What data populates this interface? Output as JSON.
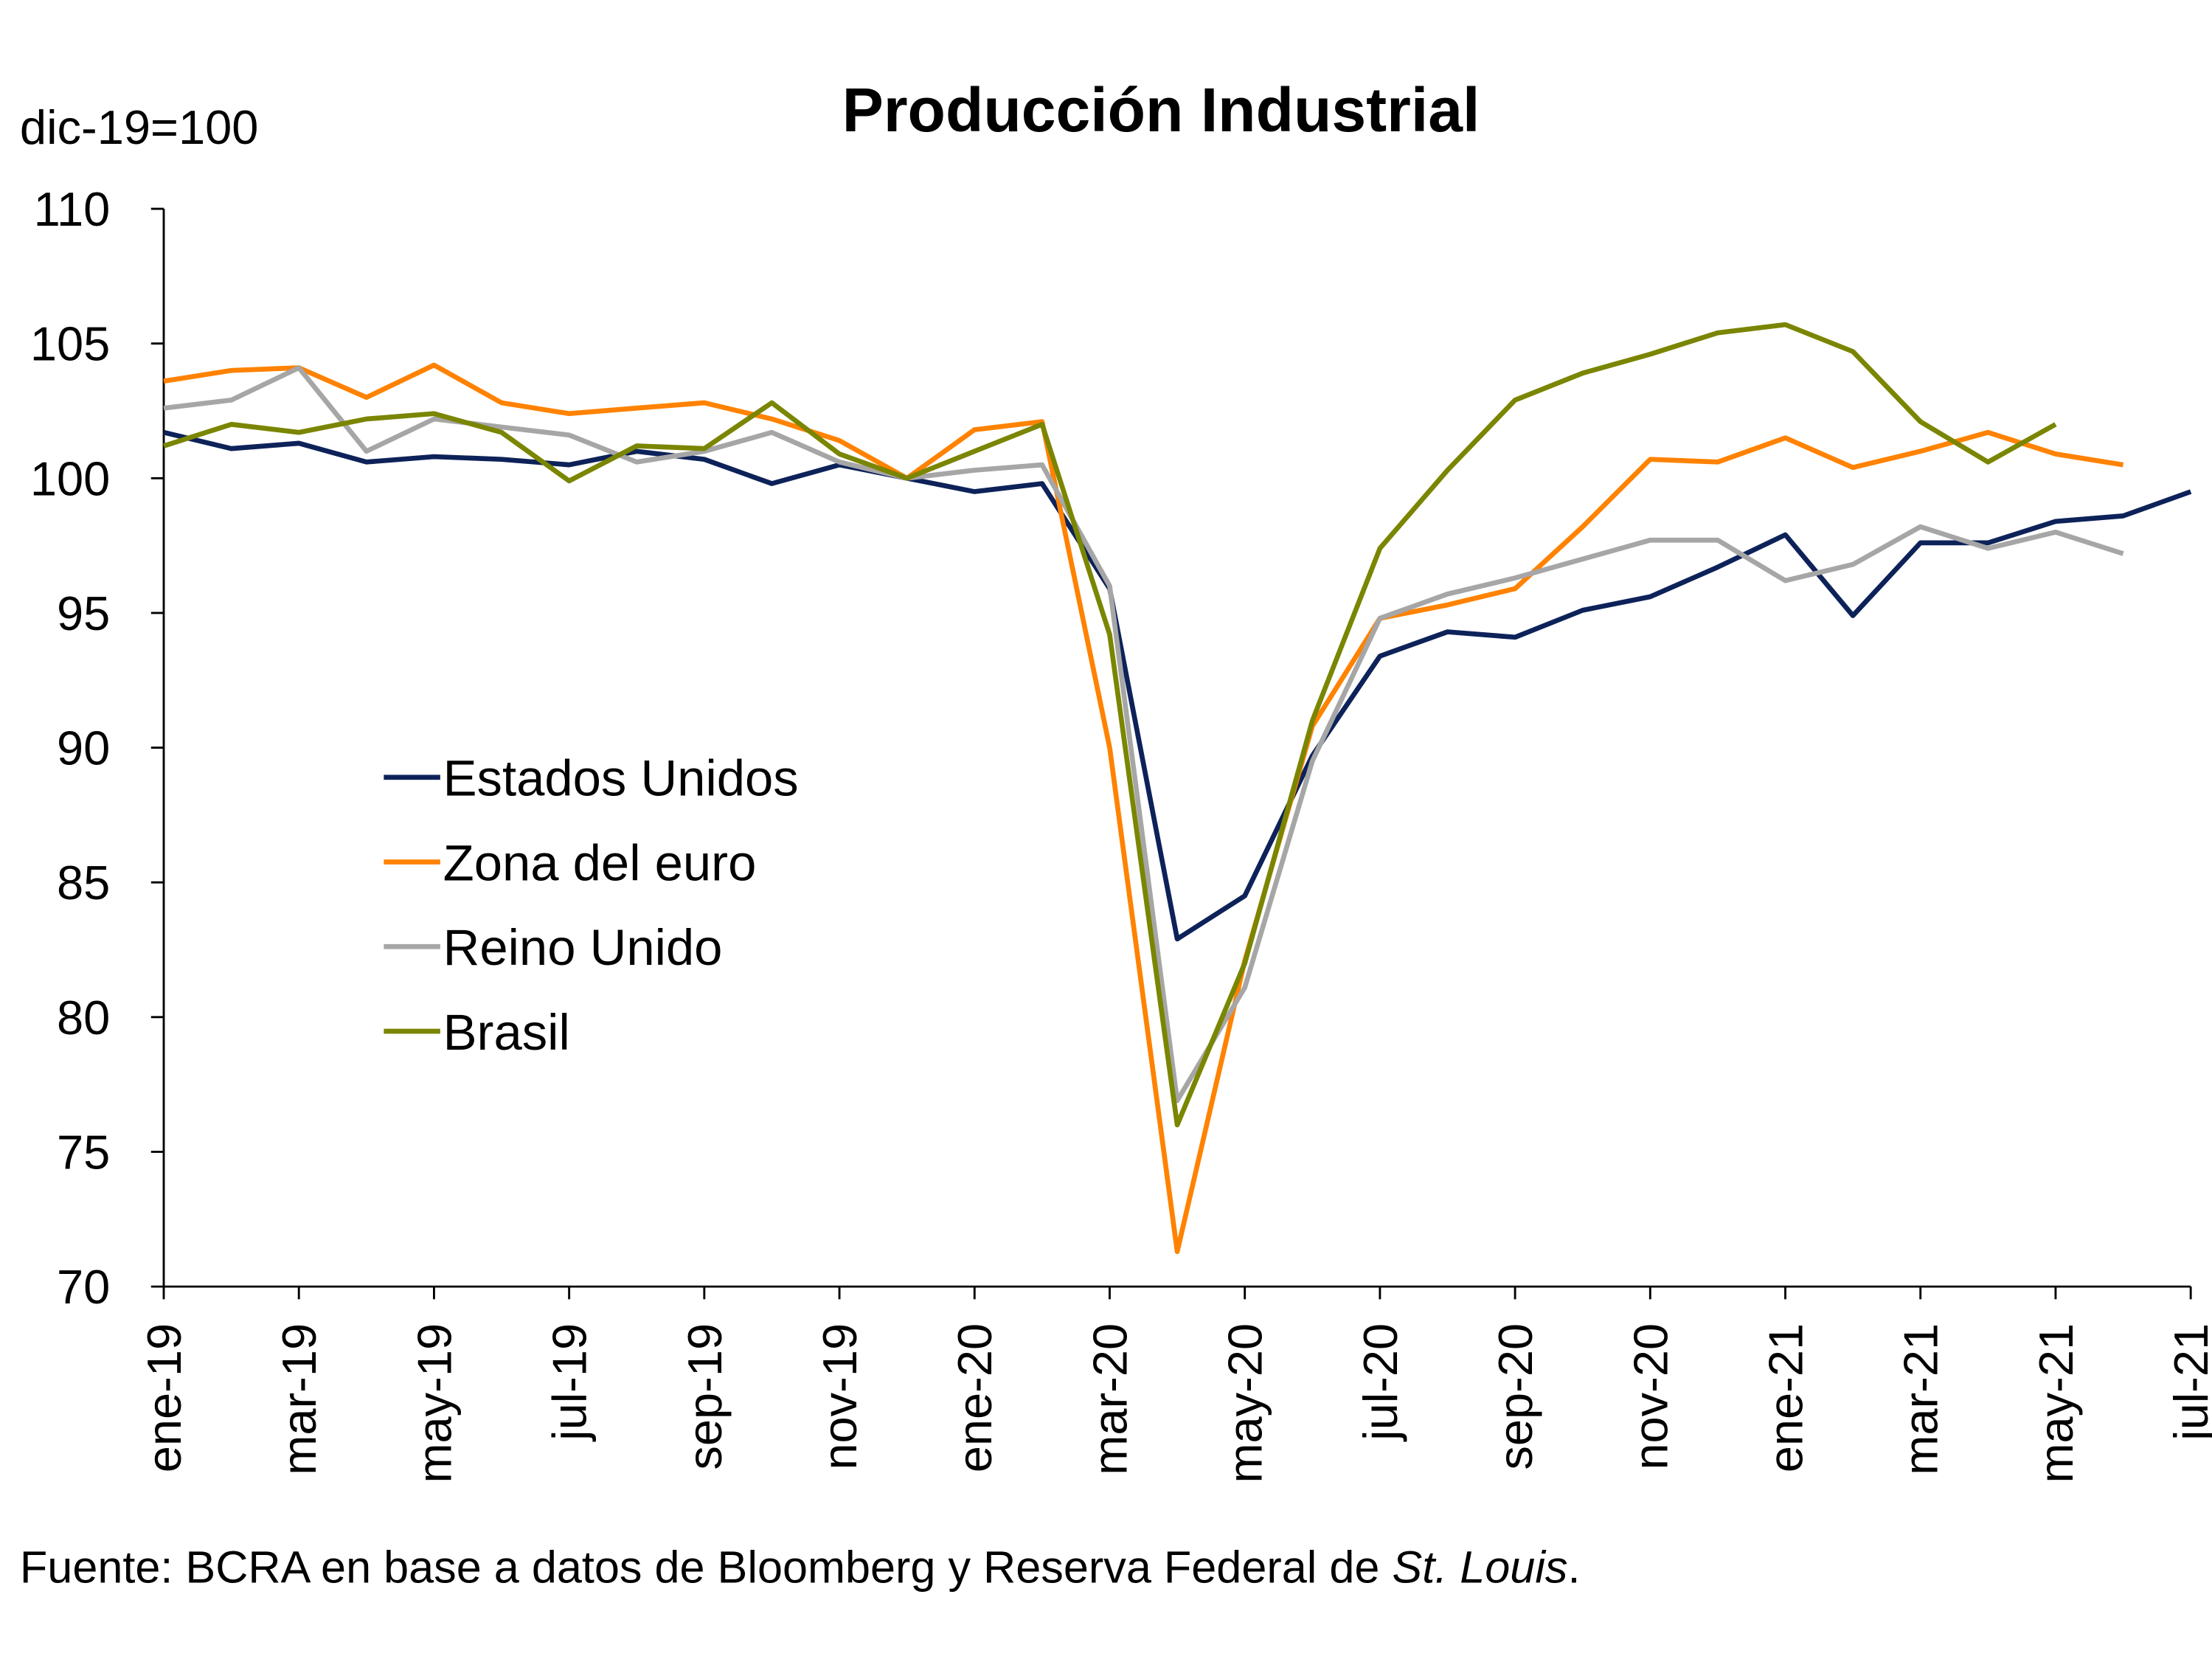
{
  "chart_data": {
    "type": "line",
    "title": "Producción Industrial",
    "ylabel": "dic-19=100",
    "xlabel": "",
    "ylim": [
      70,
      110
    ],
    "yticks": [
      70,
      75,
      80,
      85,
      90,
      95,
      100,
      105,
      110
    ],
    "grid": false,
    "legend_placement": "center-left",
    "x": [
      "ene-19",
      "feb-19",
      "mar-19",
      "abr-19",
      "may-19",
      "jun-19",
      "jul-19",
      "ago-19",
      "sep-19",
      "oct-19",
      "nov-19",
      "dic-19",
      "ene-20",
      "feb-20",
      "mar-20",
      "abr-20",
      "may-20",
      "jun-20",
      "jul-20",
      "ago-20",
      "sep-20",
      "oct-20",
      "nov-20",
      "dic-20",
      "ene-21",
      "feb-21",
      "mar-21",
      "abr-21",
      "may-21",
      "jun-21",
      "jul-21"
    ],
    "xtick_labels": [
      "ene-19",
      "mar-19",
      "may-19",
      "jul-19",
      "sep-19",
      "nov-19",
      "ene-20",
      "mar-20",
      "may-20",
      "jul-20",
      "sep-20",
      "nov-20",
      "ene-21",
      "mar-21",
      "may-21",
      "jul-21"
    ],
    "series": [
      {
        "name": "Estados Unidos",
        "color": "#0d2259",
        "values": [
          101.7,
          101.1,
          101.3,
          100.6,
          100.8,
          100.7,
          100.5,
          101.0,
          100.7,
          99.8,
          100.5,
          100.0,
          99.5,
          99.8,
          95.9,
          82.9,
          84.5,
          89.7,
          93.4,
          94.3,
          94.1,
          95.1,
          95.6,
          96.7,
          97.9,
          94.9,
          97.6,
          97.6,
          98.4,
          98.6,
          99.5
        ]
      },
      {
        "name": "Zona del euro",
        "color": "#ff8200",
        "values": [
          103.6,
          104.0,
          104.1,
          103.0,
          104.2,
          102.8,
          102.4,
          102.6,
          102.8,
          102.2,
          101.4,
          100.0,
          101.8,
          102.1,
          90.0,
          71.3,
          82.1,
          90.8,
          94.8,
          95.3,
          95.9,
          98.2,
          100.7,
          100.6,
          101.5,
          100.4,
          101.0,
          101.7,
          100.9,
          100.5,
          null
        ]
      },
      {
        "name": "Reino Unido",
        "color": "#a6a6a6",
        "values": [
          102.6,
          102.9,
          104.1,
          101.0,
          102.2,
          101.9,
          101.6,
          100.6,
          101.0,
          101.7,
          100.6,
          100.0,
          100.3,
          100.5,
          96.0,
          76.9,
          81.1,
          89.5,
          94.8,
          95.7,
          96.3,
          97.0,
          97.7,
          97.7,
          96.2,
          96.8,
          98.2,
          97.4,
          98.0,
          97.2,
          null
        ]
      },
      {
        "name": "Brasil",
        "color": "#7a8500",
        "values": [
          101.2,
          102.0,
          101.7,
          102.2,
          102.4,
          101.7,
          99.9,
          101.2,
          101.1,
          102.8,
          100.9,
          100.0,
          101.0,
          102.0,
          94.2,
          76.0,
          82.0,
          91.0,
          97.4,
          100.3,
          102.9,
          103.9,
          104.6,
          105.4,
          105.7,
          104.7,
          102.1,
          100.6,
          102.0,
          null,
          null
        ]
      }
    ]
  },
  "source": {
    "prefix": "Fuente: BCRA en base a datos de Bloomberg y Reserva Federal de ",
    "italic": "St. Louis",
    "suffix": "."
  }
}
